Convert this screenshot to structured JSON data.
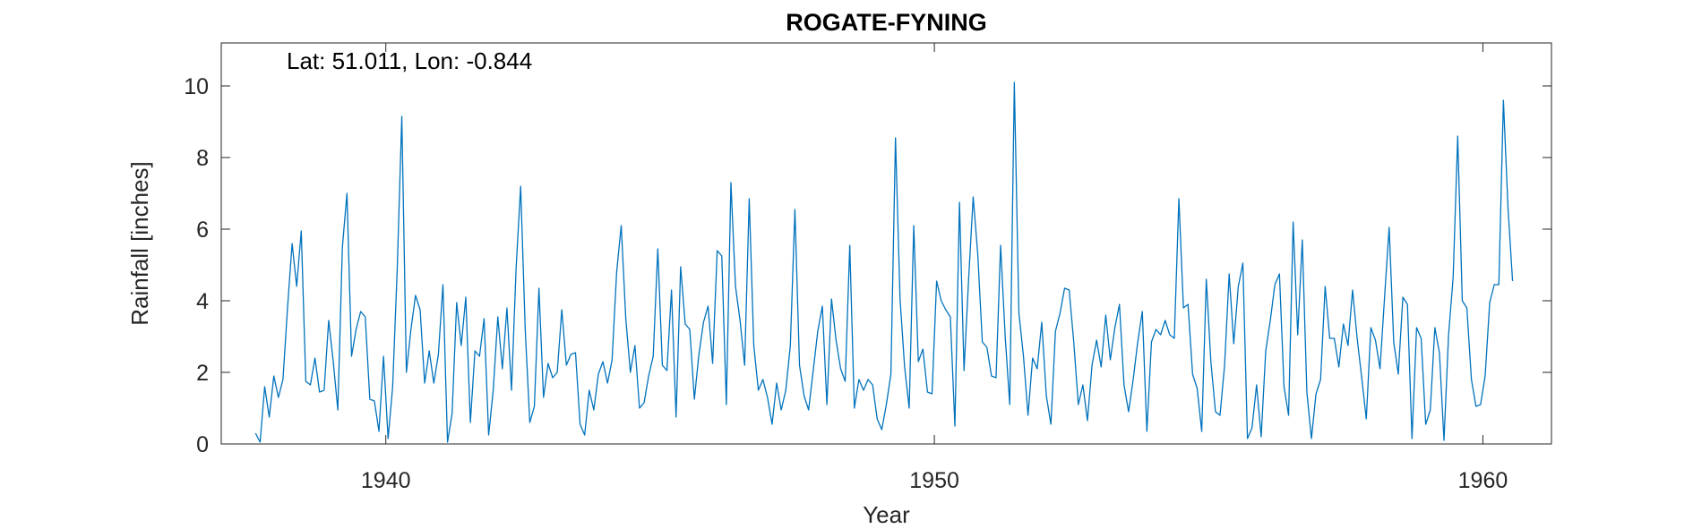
{
  "chart_data": {
    "type": "line",
    "title": "ROGATE-FYNING",
    "annotation": "Lat: 51.011, Lon: -0.844",
    "xlabel": "Year",
    "ylabel": "Rainfall [inches]",
    "xlim": [
      1937,
      1961.25
    ],
    "ylim": [
      0,
      11.2
    ],
    "xticks": [
      1940,
      1950,
      1960
    ],
    "yticks": [
      0,
      2,
      4,
      6,
      8,
      10
    ],
    "grid": false,
    "line_color": "#0072BD",
    "series": [
      {
        "x_start": 1937.625,
        "x_step": 0.08333,
        "values": [
          0.3,
          0.05,
          1.6,
          0.75,
          1.9,
          1.3,
          1.8,
          3.8,
          5.6,
          4.4,
          5.95,
          1.75,
          1.65,
          2.4,
          1.45,
          1.5,
          3.45,
          2.3,
          0.95,
          5.5,
          7.0,
          2.45,
          3.2,
          3.7,
          3.55,
          1.25,
          1.2,
          0.35,
          2.45,
          0.15,
          1.6,
          4.9,
          9.15,
          2.0,
          3.2,
          4.15,
          3.75,
          1.7,
          2.6,
          1.7,
          2.5,
          4.45,
          0.05,
          0.85,
          3.95,
          2.75,
          4.1,
          0.6,
          2.6,
          2.45,
          3.5,
          0.25,
          1.5,
          3.55,
          2.1,
          3.8,
          1.5,
          4.9,
          7.2,
          3.2,
          0.6,
          1.05,
          4.35,
          1.3,
          2.25,
          1.85,
          2.0,
          3.75,
          2.2,
          2.5,
          2.55,
          0.55,
          0.25,
          1.5,
          0.95,
          1.95,
          2.3,
          1.7,
          2.35,
          4.8,
          6.1,
          3.5,
          2.0,
          2.75,
          1.0,
          1.15,
          1.9,
          2.45,
          5.45,
          2.2,
          2.05,
          4.3,
          0.75,
          4.95,
          3.35,
          3.2,
          1.25,
          2.5,
          3.4,
          3.85,
          2.25,
          5.4,
          5.25,
          1.1,
          7.3,
          4.4,
          3.45,
          2.2,
          6.85,
          2.75,
          1.5,
          1.8,
          1.3,
          0.55,
          1.7,
          0.95,
          1.5,
          2.75,
          6.55,
          2.2,
          1.35,
          0.95,
          2.05,
          3.15,
          3.85,
          1.1,
          4.05,
          2.9,
          2.1,
          1.75,
          5.55,
          1.0,
          1.8,
          1.5,
          1.8,
          1.65,
          0.7,
          0.4,
          1.1,
          1.95,
          8.55,
          4.05,
          2.15,
          1.0,
          6.1,
          2.3,
          2.65,
          1.45,
          1.4,
          4.55,
          4.0,
          3.75,
          3.55,
          0.5,
          6.75,
          2.05,
          4.6,
          6.9,
          5.3,
          2.85,
          2.7,
          1.9,
          1.85,
          5.55,
          3.0,
          1.1,
          10.1,
          3.65,
          2.45,
          0.8,
          2.4,
          2.1,
          3.4,
          1.35,
          0.55,
          3.15,
          3.65,
          4.35,
          4.3,
          2.85,
          1.1,
          1.65,
          0.65,
          2.2,
          2.9,
          2.15,
          3.6,
          2.35,
          3.25,
          3.9,
          1.65,
          0.9,
          1.8,
          2.85,
          3.7,
          0.35,
          2.85,
          3.2,
          3.05,
          3.45,
          3.05,
          2.95,
          6.85,
          3.8,
          3.9,
          1.95,
          1.55,
          0.35,
          4.6,
          2.3,
          0.9,
          0.8,
          2.2,
          4.75,
          2.8,
          4.4,
          5.05,
          0.15,
          0.45,
          1.65,
          0.2,
          2.6,
          3.45,
          4.45,
          4.75,
          1.6,
          0.8,
          6.2,
          3.05,
          5.7,
          1.45,
          0.15,
          1.4,
          1.8,
          4.4,
          2.95,
          2.95,
          2.15,
          3.35,
          2.75,
          4.3,
          2.95,
          1.85,
          0.7,
          3.25,
          2.9,
          2.1,
          4.1,
          6.05,
          2.85,
          1.95,
          4.1,
          3.9,
          0.15,
          3.25,
          2.95,
          0.55,
          0.95,
          3.25,
          2.55,
          0.1,
          3.05,
          4.65,
          8.6,
          4.0,
          3.8,
          1.8,
          1.05,
          1.1,
          1.9,
          3.95,
          4.45,
          4.45,
          9.6,
          6.6,
          4.55
        ]
      }
    ]
  }
}
